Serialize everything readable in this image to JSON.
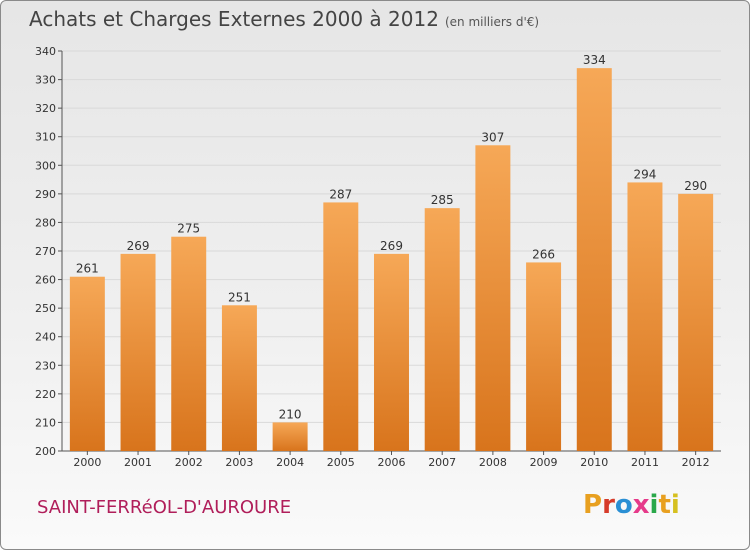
{
  "header": {
    "title": "Achats et Charges Externes 2000 à 2012",
    "unit": "(en milliers d'€)"
  },
  "footer": {
    "place": "SAINT-FERRéOL-D'AUROURE",
    "logo": "Proxiti",
    "logo_colors": [
      "#e8a020",
      "#d63b2a",
      "#2a8fd4",
      "#e63a8a",
      "#2aa84a",
      "#e8a020",
      "#d6c020"
    ]
  },
  "colors": {
    "bar_top": "#f6a857",
    "bar_bottom": "#d8741c",
    "grid": "#d9d9d9",
    "place": "#b01e5a"
  },
  "chart_data": {
    "type": "bar",
    "title": "Achats et Charges Externes 2000 à 2012",
    "categories": [
      "2000",
      "2001",
      "2002",
      "2003",
      "2004",
      "2005",
      "2006",
      "2007",
      "2008",
      "2009",
      "2010",
      "2011",
      "2012"
    ],
    "values": [
      261,
      269,
      275,
      251,
      210,
      287,
      269,
      285,
      307,
      266,
      334,
      294,
      290
    ],
    "ylim": [
      200,
      340
    ],
    "yticks": [
      200,
      210,
      220,
      230,
      240,
      250,
      260,
      270,
      280,
      290,
      300,
      310,
      320,
      330,
      340
    ],
    "grid": true,
    "xlabel": "",
    "ylabel": ""
  }
}
